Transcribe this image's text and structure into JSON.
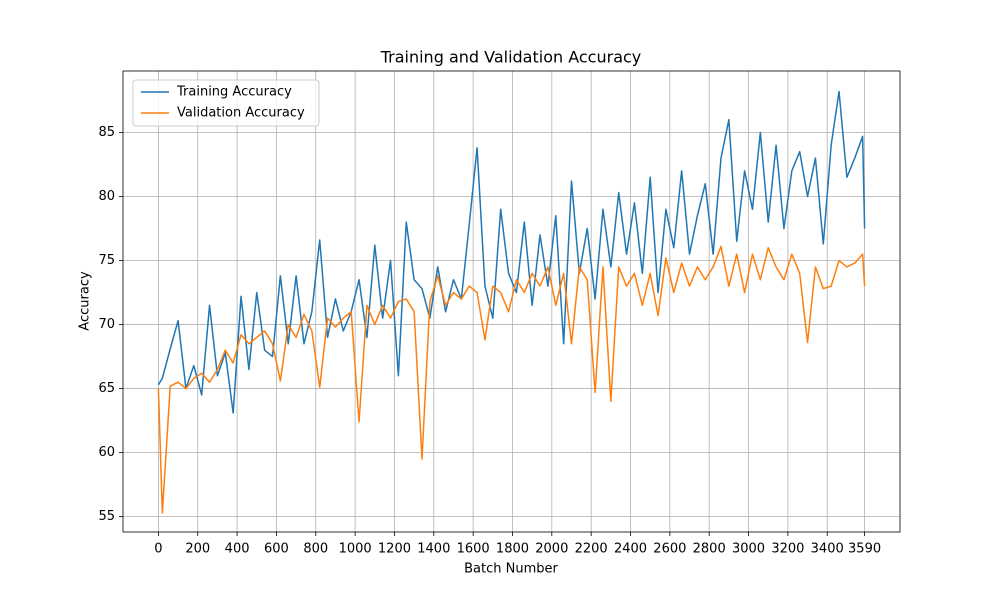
{
  "chart_data": {
    "type": "line",
    "title": "Training and Validation Accuracy",
    "x_label": "Batch Number",
    "y_label": "Accuracy",
    "x": [
      0,
      20,
      60,
      100,
      140,
      180,
      220,
      260,
      300,
      340,
      380,
      420,
      460,
      500,
      540,
      580,
      620,
      660,
      700,
      740,
      780,
      820,
      860,
      900,
      940,
      980,
      1020,
      1060,
      1100,
      1140,
      1180,
      1220,
      1260,
      1300,
      1340,
      1380,
      1420,
      1460,
      1500,
      1540,
      1580,
      1620,
      1660,
      1700,
      1740,
      1780,
      1820,
      1860,
      1900,
      1940,
      1980,
      2020,
      2060,
      2100,
      2140,
      2180,
      2220,
      2260,
      2300,
      2340,
      2380,
      2420,
      2460,
      2500,
      2540,
      2580,
      2620,
      2660,
      2700,
      2740,
      2780,
      2820,
      2860,
      2900,
      2940,
      2980,
      3020,
      3060,
      3100,
      3140,
      3180,
      3220,
      3260,
      3300,
      3340,
      3380,
      3420,
      3460,
      3500,
      3540,
      3580,
      3590
    ],
    "series": [
      {
        "name": "Training Accuracy",
        "color": "#1f77b4",
        "values": [
          65.3,
          65.8,
          68.1,
          70.3,
          65.0,
          66.8,
          64.5,
          71.5,
          66.0,
          67.8,
          63.1,
          72.2,
          66.5,
          72.5,
          68.0,
          67.5,
          73.8,
          68.5,
          73.8,
          68.5,
          71.0,
          76.6,
          69.0,
          72.0,
          69.5,
          71.0,
          73.5,
          69.0,
          76.2,
          70.5,
          75.0,
          66.0,
          78.0,
          73.5,
          72.8,
          70.5,
          74.5,
          71.0,
          73.5,
          72.0,
          77.8,
          83.8,
          73.0,
          70.5,
          79.0,
          74.0,
          72.5,
          78.0,
          71.5,
          77.0,
          73.0,
          78.5,
          68.5,
          81.2,
          74.0,
          77.5,
          72.0,
          79.0,
          74.5,
          80.3,
          75.5,
          79.5,
          74.0,
          81.5,
          72.5,
          79.0,
          76.0,
          82.0,
          75.5,
          78.5,
          81.0,
          75.5,
          83.0,
          86.0,
          76.5,
          82.0,
          79.0,
          85.0,
          78.0,
          84.0,
          77.5,
          82.0,
          83.5,
          80.0,
          83.0,
          76.3,
          84.0,
          88.2,
          81.5,
          83.0,
          84.7,
          77.5
        ]
      },
      {
        "name": "Validation Accuracy",
        "color": "#ff7f0e",
        "values": [
          65.0,
          55.3,
          65.2,
          65.5,
          65.0,
          65.8,
          66.2,
          65.5,
          66.5,
          68.0,
          67.0,
          69.2,
          68.5,
          69.0,
          69.5,
          68.5,
          65.6,
          70.0,
          69.0,
          70.8,
          69.5,
          65.1,
          70.5,
          69.8,
          70.5,
          71.0,
          62.4,
          71.5,
          70.0,
          71.5,
          70.5,
          71.8,
          72.0,
          71.0,
          59.5,
          71.8,
          73.8,
          71.5,
          72.5,
          72.0,
          73.0,
          72.5,
          68.8,
          73.0,
          72.5,
          71.0,
          73.5,
          72.5,
          74.0,
          73.0,
          74.5,
          71.5,
          74.0,
          68.5,
          74.5,
          73.5,
          64.7,
          74.5,
          64.0,
          74.5,
          73.0,
          74.0,
          71.5,
          74.0,
          70.7,
          75.2,
          72.5,
          74.8,
          73.0,
          74.5,
          73.5,
          74.5,
          76.1,
          73.0,
          75.5,
          72.5,
          75.5,
          73.5,
          76.0,
          74.5,
          73.5,
          75.5,
          74.0,
          68.6,
          74.5,
          72.8,
          73.0,
          75.0,
          74.5,
          74.8,
          75.5,
          73.0
        ]
      }
    ],
    "xlim": [
      -180,
      3770
    ],
    "ylim": [
      53.8,
      89.8
    ],
    "xticks": [
      0,
      200,
      400,
      600,
      800,
      1000,
      1200,
      1400,
      1600,
      1800,
      2000,
      2200,
      2400,
      2600,
      2800,
      3000,
      3200,
      3400,
      3590
    ],
    "yticks": [
      55,
      60,
      65,
      70,
      75,
      80,
      85
    ],
    "grid": true,
    "legend": "upper left"
  }
}
